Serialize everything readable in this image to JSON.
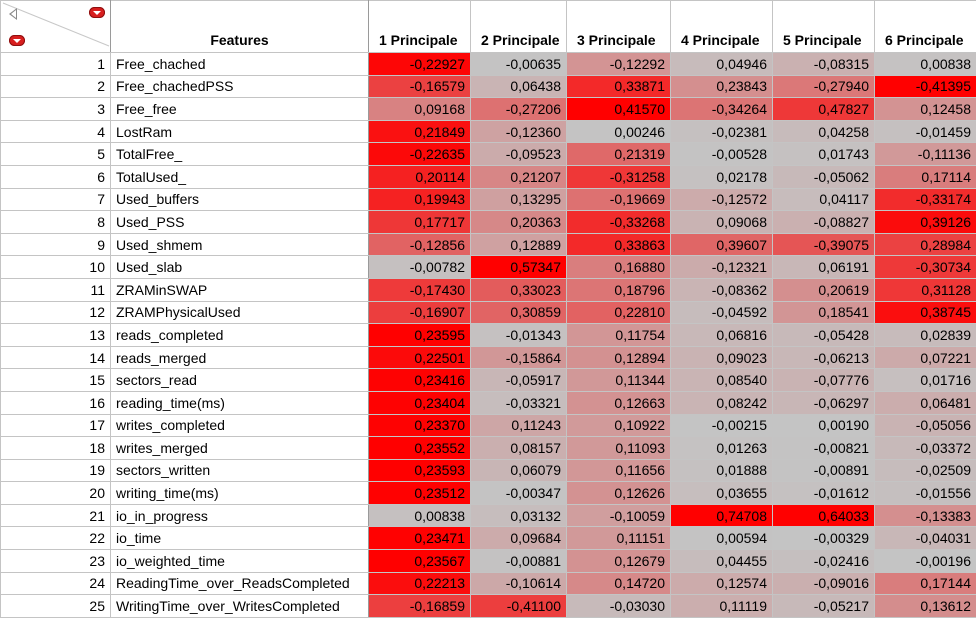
{
  "table": {
    "features_header": "Features",
    "columns": [
      "1 Principale",
      "2 Principale",
      "3 Principale",
      "4 Principale",
      "5 Principale",
      "6 Principale"
    ],
    "rows": [
      {
        "idx": "1",
        "feature": "Free_chached",
        "values": [
          "-0,22927",
          "-0,00635",
          "-0,12292",
          "0,04946",
          "-0,08315",
          "0,00838"
        ]
      },
      {
        "idx": "2",
        "feature": "Free_chachedPSS",
        "values": [
          "-0,16579",
          "0,06438",
          "0,33871",
          "0,23843",
          "-0,27940",
          "-0,41395"
        ]
      },
      {
        "idx": "3",
        "feature": "Free_free",
        "values": [
          "0,09168",
          "-0,27206",
          "0,41570",
          "-0,34264",
          "0,47827",
          "0,12458"
        ]
      },
      {
        "idx": "4",
        "feature": "LostRam",
        "values": [
          "0,21849",
          "-0,12360",
          "0,00246",
          "-0,02381",
          "0,04258",
          "-0,01459"
        ]
      },
      {
        "idx": "5",
        "feature": "TotalFree_",
        "values": [
          "-0,22635",
          "-0,09523",
          "0,21319",
          "-0,00528",
          "0,01743",
          "-0,11136"
        ]
      },
      {
        "idx": "6",
        "feature": "TotalUsed_",
        "values": [
          "0,20114",
          "0,21207",
          "-0,31258",
          "0,02178",
          "-0,05062",
          "0,17114"
        ]
      },
      {
        "idx": "7",
        "feature": "Used_buffers",
        "values": [
          "0,19943",
          "0,13295",
          "-0,19669",
          "-0,12572",
          "0,04117",
          "-0,33174"
        ]
      },
      {
        "idx": "8",
        "feature": "Used_PSS",
        "values": [
          "0,17717",
          "0,20363",
          "-0,33268",
          "0,09068",
          "-0,08827",
          "0,39126"
        ]
      },
      {
        "idx": "9",
        "feature": "Used_shmem",
        "values": [
          "-0,12856",
          "0,12889",
          "0,33863",
          "0,39607",
          "-0,39075",
          "0,28984"
        ]
      },
      {
        "idx": "10",
        "feature": "Used_slab",
        "values": [
          "-0,00782",
          "0,57347",
          "0,16880",
          "-0,12321",
          "0,06191",
          "-0,30734"
        ]
      },
      {
        "idx": "11",
        "feature": "ZRAMinSWAP",
        "values": [
          "-0,17430",
          "0,33023",
          "0,18796",
          "-0,08362",
          "0,20619",
          "0,31128"
        ]
      },
      {
        "idx": "12",
        "feature": "ZRAMPhysicalUsed",
        "values": [
          "-0,16907",
          "0,30859",
          "0,22810",
          "-0,04592",
          "0,18541",
          "0,38745"
        ]
      },
      {
        "idx": "13",
        "feature": "reads_completed",
        "values": [
          "0,23595",
          "-0,01343",
          "0,11754",
          "0,06816",
          "-0,05428",
          "0,02839"
        ]
      },
      {
        "idx": "14",
        "feature": "reads_merged",
        "values": [
          "0,22501",
          "-0,15864",
          "0,12894",
          "0,09023",
          "-0,06213",
          "0,07221"
        ]
      },
      {
        "idx": "15",
        "feature": "sectors_read",
        "values": [
          "0,23416",
          "-0,05917",
          "0,11344",
          "0,08540",
          "-0,07776",
          "0,01716"
        ]
      },
      {
        "idx": "16",
        "feature": "reading_time(ms)",
        "values": [
          "0,23404",
          "-0,03321",
          "0,12663",
          "0,08242",
          "-0,06297",
          "0,06481"
        ]
      },
      {
        "idx": "17",
        "feature": "writes_completed",
        "values": [
          "0,23370",
          "0,11243",
          "0,10922",
          "-0,00215",
          "0,00190",
          "-0,05056"
        ]
      },
      {
        "idx": "18",
        "feature": "writes_merged",
        "values": [
          "0,23552",
          "0,08157",
          "0,11093",
          "0,01263",
          "-0,00821",
          "-0,03372"
        ]
      },
      {
        "idx": "19",
        "feature": "sectors_written",
        "values": [
          "0,23593",
          "0,06079",
          "0,11656",
          "0,01888",
          "-0,00891",
          "-0,02509"
        ]
      },
      {
        "idx": "20",
        "feature": "writing_time(ms)",
        "values": [
          "0,23512",
          "-0,00347",
          "0,12626",
          "0,03655",
          "-0,01612",
          "-0,01556"
        ]
      },
      {
        "idx": "21",
        "feature": "io_in_progress",
        "values": [
          "0,00838",
          "0,03132",
          "-0,10059",
          "0,74708",
          "0,64033",
          "-0,13383"
        ]
      },
      {
        "idx": "22",
        "feature": "io_time",
        "values": [
          "0,23471",
          "0,09684",
          "0,11151",
          "0,00594",
          "-0,00329",
          "-0,04031"
        ]
      },
      {
        "idx": "23",
        "feature": "io_weighted_time",
        "values": [
          "0,23567",
          "-0,00881",
          "0,12679",
          "0,04455",
          "-0,02416",
          "-0,00196"
        ]
      },
      {
        "idx": "24",
        "feature": "ReadingTime_over_ReadsCompleted",
        "values": [
          "0,22213",
          "-0,10614",
          "0,14720",
          "0,12574",
          "-0,09016",
          "0,17144"
        ]
      },
      {
        "idx": "25",
        "feature": "WritingTime_over_WritesCompleted",
        "values": [
          "-0,16859",
          "-0,41100",
          "-0,03030",
          "0,11119",
          "-0,05217",
          "0,13612"
        ]
      }
    ]
  },
  "colors": {
    "neutral": "#c4c4c4",
    "hot": "#ff0000",
    "grid": "#c4c4c4"
  }
}
